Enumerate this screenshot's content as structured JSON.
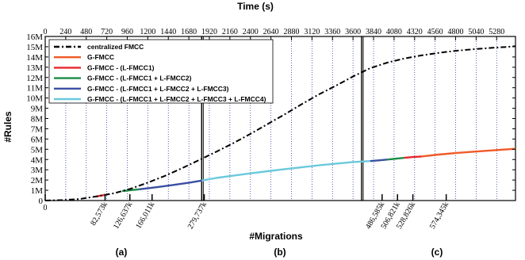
{
  "chart_data": {
    "type": "line",
    "title": "",
    "top_axis_label": "Time (s)",
    "ylabel": "#Rules",
    "xlabel": "#Migrations",
    "ylim": [
      0,
      16000000
    ],
    "y_ticks": [
      "0",
      "1M",
      "2M",
      "3M",
      "4M",
      "5M",
      "6M",
      "7M",
      "8M",
      "9M",
      "10M",
      "11M",
      "12M",
      "13M",
      "14M",
      "15M",
      "16M"
    ],
    "time_range": [
      0,
      5500
    ],
    "time_ticks": [
      "0",
      "240",
      "480",
      "720",
      "960",
      "1200",
      "1440",
      "1680",
      "1920",
      "2160",
      "2400",
      "2640",
      "2880",
      "3120",
      "3360",
      "3600",
      "3840",
      "4080",
      "4320",
      "4560",
      "4800",
      "5040",
      "5280"
    ],
    "panels": [
      {
        "label": "(a)",
        "time_start": 0,
        "time_end": 1830
      },
      {
        "label": "(b)",
        "time_start": 1830,
        "time_end": 3700
      },
      {
        "label": "(c)",
        "time_start": 3700,
        "time_end": 5500
      }
    ],
    "migration_ticks": [
      {
        "label": "0",
        "time": 0
      },
      {
        "label": "82,573k",
        "time": 700
      },
      {
        "label": "126,637k",
        "time": 990
      },
      {
        "label": "166,011k",
        "time": 1250
      },
      {
        "label": "279,737k",
        "time": 1860
      },
      {
        "label": "486,585k",
        "time": 3940
      },
      {
        "label": "506,821k",
        "time": 4120
      },
      {
        "label": "528,826k",
        "time": 4300
      },
      {
        "label": "574,345k",
        "time": 4690
      }
    ],
    "legend": {
      "position": "top-left",
      "entries": [
        {
          "name": "centralized FMCC",
          "color": "#000000",
          "dash": "dashdot"
        },
        {
          "name": "G-FMCC",
          "color": "#f05a28",
          "dash": "solid"
        },
        {
          "name": "G-FMCC - (L-FMCC1)",
          "color": "#e8262b",
          "dash": "solid"
        },
        {
          "name": "G-FMCC - (L-FMCC1 + L-FMCC2)",
          "color": "#1a8c46",
          "dash": "solid"
        },
        {
          "name": "G-FMCC - (L-FMCC1 + L-FMCC2 + L-FMCC3)",
          "color": "#3a4fa3",
          "dash": "solid"
        },
        {
          "name": "G-FMCC - (L-FMCC1 + L-FMCC2 + L-FMCC3 + L-FMCC4)",
          "color": "#6cc9dc",
          "dash": "solid"
        }
      ]
    },
    "series": [
      {
        "name": "centralized FMCC",
        "color": "#000000",
        "x": [
          0,
          200,
          400,
          600,
          800,
          1000,
          1200,
          1400,
          1600,
          1800,
          2000,
          2200,
          2400,
          2600,
          2800,
          3000,
          3200,
          3400,
          3600,
          3700,
          3800,
          4000,
          4200,
          4400,
          4600,
          4800,
          5000,
          5200,
          5400,
          5500
        ],
        "y": [
          0,
          50000,
          150000,
          400000,
          700000,
          1150000,
          1750000,
          2400000,
          3150000,
          3950000,
          4750000,
          5600000,
          6500000,
          7450000,
          8400000,
          9400000,
          10350000,
          11200000,
          12100000,
          12500000,
          12900000,
          13450000,
          13850000,
          14150000,
          14400000,
          14600000,
          14750000,
          14880000,
          14980000,
          15050000
        ]
      },
      {
        "name": "G-FMCC",
        "color": "#f05a28",
        "x": [
          4400,
          4600,
          4800,
          5000,
          5200,
          5400,
          5500
        ],
        "y": [
          4300000,
          4480000,
          4630000,
          4760000,
          4880000,
          4990000,
          5050000
        ]
      },
      {
        "name": "G-FMCC - (L-FMCC1)",
        "color": "#e8262b",
        "x": [
          600,
          700,
          4200,
          4300,
          4400
        ],
        "y": [
          400000,
          560000,
          4170000,
          4240000,
          4300000
        ]
      },
      {
        "name": "G-FMCC - (L-FMCC1 + L-FMCC2)",
        "color": "#1a8c46",
        "x": [
          900,
          1000,
          1100,
          4000,
          4100,
          4200
        ],
        "y": [
          920000,
          1010000,
          1100000,
          4000000,
          4080000,
          4170000
        ]
      },
      {
        "name": "G-FMCC - (L-FMCC1 + L-FMCC2 + L-FMCC3)",
        "color": "#3a4fa3",
        "x": [
          1100,
          1300,
          1500,
          1700,
          1830,
          3800,
          3900,
          4000
        ],
        "y": [
          1100000,
          1300000,
          1520000,
          1760000,
          1950000,
          3850000,
          3920000,
          4000000
        ]
      },
      {
        "name": "G-FMCC - (L-FMCC1 + L-FMCC2 + L-FMCC3 + L-FMCC4)",
        "color": "#6cc9dc",
        "x": [
          1830,
          2000,
          2200,
          2400,
          2600,
          2800,
          3000,
          3200,
          3400,
          3600,
          3800
        ],
        "y": [
          1950000,
          2200000,
          2430000,
          2650000,
          2860000,
          3060000,
          3250000,
          3430000,
          3600000,
          3760000,
          3850000
        ]
      }
    ]
  }
}
